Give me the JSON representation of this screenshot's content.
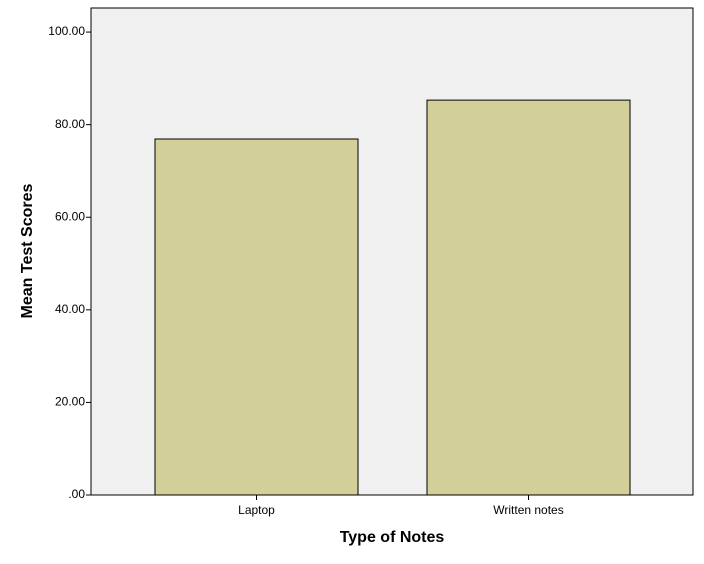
{
  "chart_data": {
    "type": "bar",
    "x_label": "Type of Notes",
    "y_label": "Mean Test Scores",
    "categories": [
      "Laptop",
      "Written notes"
    ],
    "values": [
      76.9,
      85.3
    ],
    "color": "#d3cf99",
    "ylim": [
      0,
      105.2
    ],
    "yticks": [
      {
        "value": 0,
        "label": ".00"
      },
      {
        "value": 20,
        "label": "20.00"
      },
      {
        "value": 40,
        "label": "40.00"
      },
      {
        "value": 60,
        "label": "60.00"
      },
      {
        "value": 80,
        "label": "80.00"
      },
      {
        "value": 100,
        "label": "100.00"
      }
    ]
  }
}
